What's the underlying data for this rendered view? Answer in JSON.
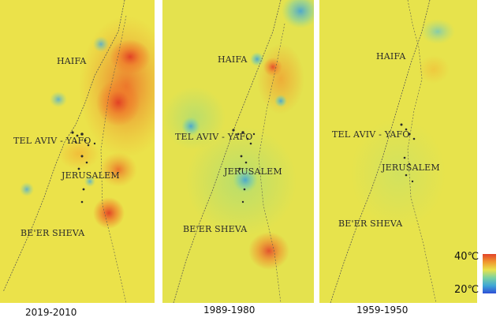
{
  "colors": {
    "base": "#e9e24a",
    "hot": "#e2432a",
    "warm": "#f0972e",
    "cool": "#3fa7d6",
    "cold": "#2e6fd6",
    "border": "#555555"
  },
  "panels": [
    {
      "caption": "2019-2010",
      "cities": {
        "haifa": "HAIFA",
        "telaviv": "TEL AVIV - YAFO",
        "jerusalem": "JERUSALEM",
        "beersheva": "BE'ER SHEVA"
      }
    },
    {
      "caption": "1989-1980",
      "cities": {
        "haifa": "HAIFA",
        "telaviv": "TEL AVIV - YAFO",
        "jerusalem": "JERUSALEM",
        "beersheva": "BE'ER SHEVA"
      }
    },
    {
      "caption": "1959-1950",
      "cities": {
        "haifa": "HAIFA",
        "telaviv": "TEL AVIV - YAFO",
        "jerusalem": "JERUSALEM",
        "beersheva": "BE'ER SHEVA"
      }
    }
  ],
  "legend": {
    "max_label": "40℃",
    "min_label": "20℃",
    "gradient": [
      "#e2432a",
      "#f0972e",
      "#e9e24a",
      "#7cd2a0",
      "#3fa7d6",
      "#2e4fd6"
    ]
  }
}
